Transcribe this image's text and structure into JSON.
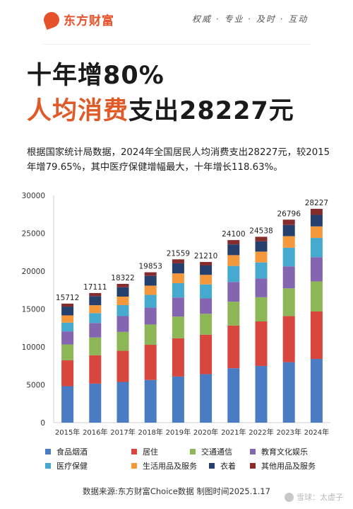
{
  "header": {
    "brand": "东方财富",
    "slogan": "权威 · 专业 · 及时 · 互动"
  },
  "title": {
    "line1": "十年增80%",
    "line2_emphasis": "人均消费",
    "line2_rest": "支出28227元"
  },
  "description": "根据国家统计局数据，2024年全国居民人均消费支出28227元，较2015年增79.65%，其中医疗保健增幅最大，十年增长118.63%。",
  "footer": {
    "source": "数据来源:东方财富Choice数据  制图时间2025.1.17",
    "watermark": "雪球：太虚子"
  },
  "chart_data": {
    "type": "bar",
    "stacked": true,
    "categories": [
      "2015年",
      "2016年",
      "2017年",
      "2018年",
      "2019年",
      "2020年",
      "2021年",
      "2022年",
      "2023年",
      "2024年"
    ],
    "totals": [
      15712,
      17111,
      18322,
      19853,
      21559,
      21210,
      24100,
      24538,
      26796,
      28227
    ],
    "ylim": [
      0,
      30000
    ],
    "yticks": [
      0,
      5000,
      10000,
      15000,
      20000,
      25000,
      30000
    ],
    "grid": false,
    "legend_position": "bottom",
    "series": [
      {
        "name": "食品烟酒",
        "color": "#4a7cc4",
        "values": [
          4814,
          5151,
          5374,
          5631,
          6084,
          6397,
          7178,
          7481,
          7983,
          8411
        ]
      },
      {
        "name": "居住",
        "color": "#d9463e",
        "values": [
          3419,
          3746,
          4107,
          4647,
          5055,
          5215,
          5641,
          5882,
          6095,
          6263
        ]
      },
      {
        "name": "交通通信",
        "color": "#8db656",
        "values": [
          2087,
          2338,
          2499,
          2675,
          2862,
          2762,
          3156,
          3195,
          3652,
          3976
        ]
      },
      {
        "name": "教育文化娱乐",
        "color": "#8466b0",
        "values": [
          1723,
          1915,
          2086,
          2226,
          2513,
          2032,
          2599,
          2469,
          2904,
          3189
        ]
      },
      {
        "name": "医疗保健",
        "color": "#46a9cf",
        "values": [
          1165,
          1307,
          1451,
          1685,
          1902,
          1843,
          2115,
          2120,
          2460,
          2547
        ]
      },
      {
        "name": "生活用品及服务",
        "color": "#f5983b",
        "values": [
          951,
          1044,
          1121,
          1223,
          1281,
          1260,
          1423,
          1432,
          1526,
          1521
        ]
      },
      {
        "name": "衣着",
        "color": "#26406e",
        "values": [
          1164,
          1203,
          1238,
          1289,
          1338,
          1238,
          1419,
          1365,
          1479,
          1521
        ]
      },
      {
        "name": "其他用品及服务",
        "color": "#862c2c",
        "values": [
          389,
          407,
          446,
          477,
          524,
          463,
          569,
          595,
          697,
          799
        ]
      }
    ]
  }
}
